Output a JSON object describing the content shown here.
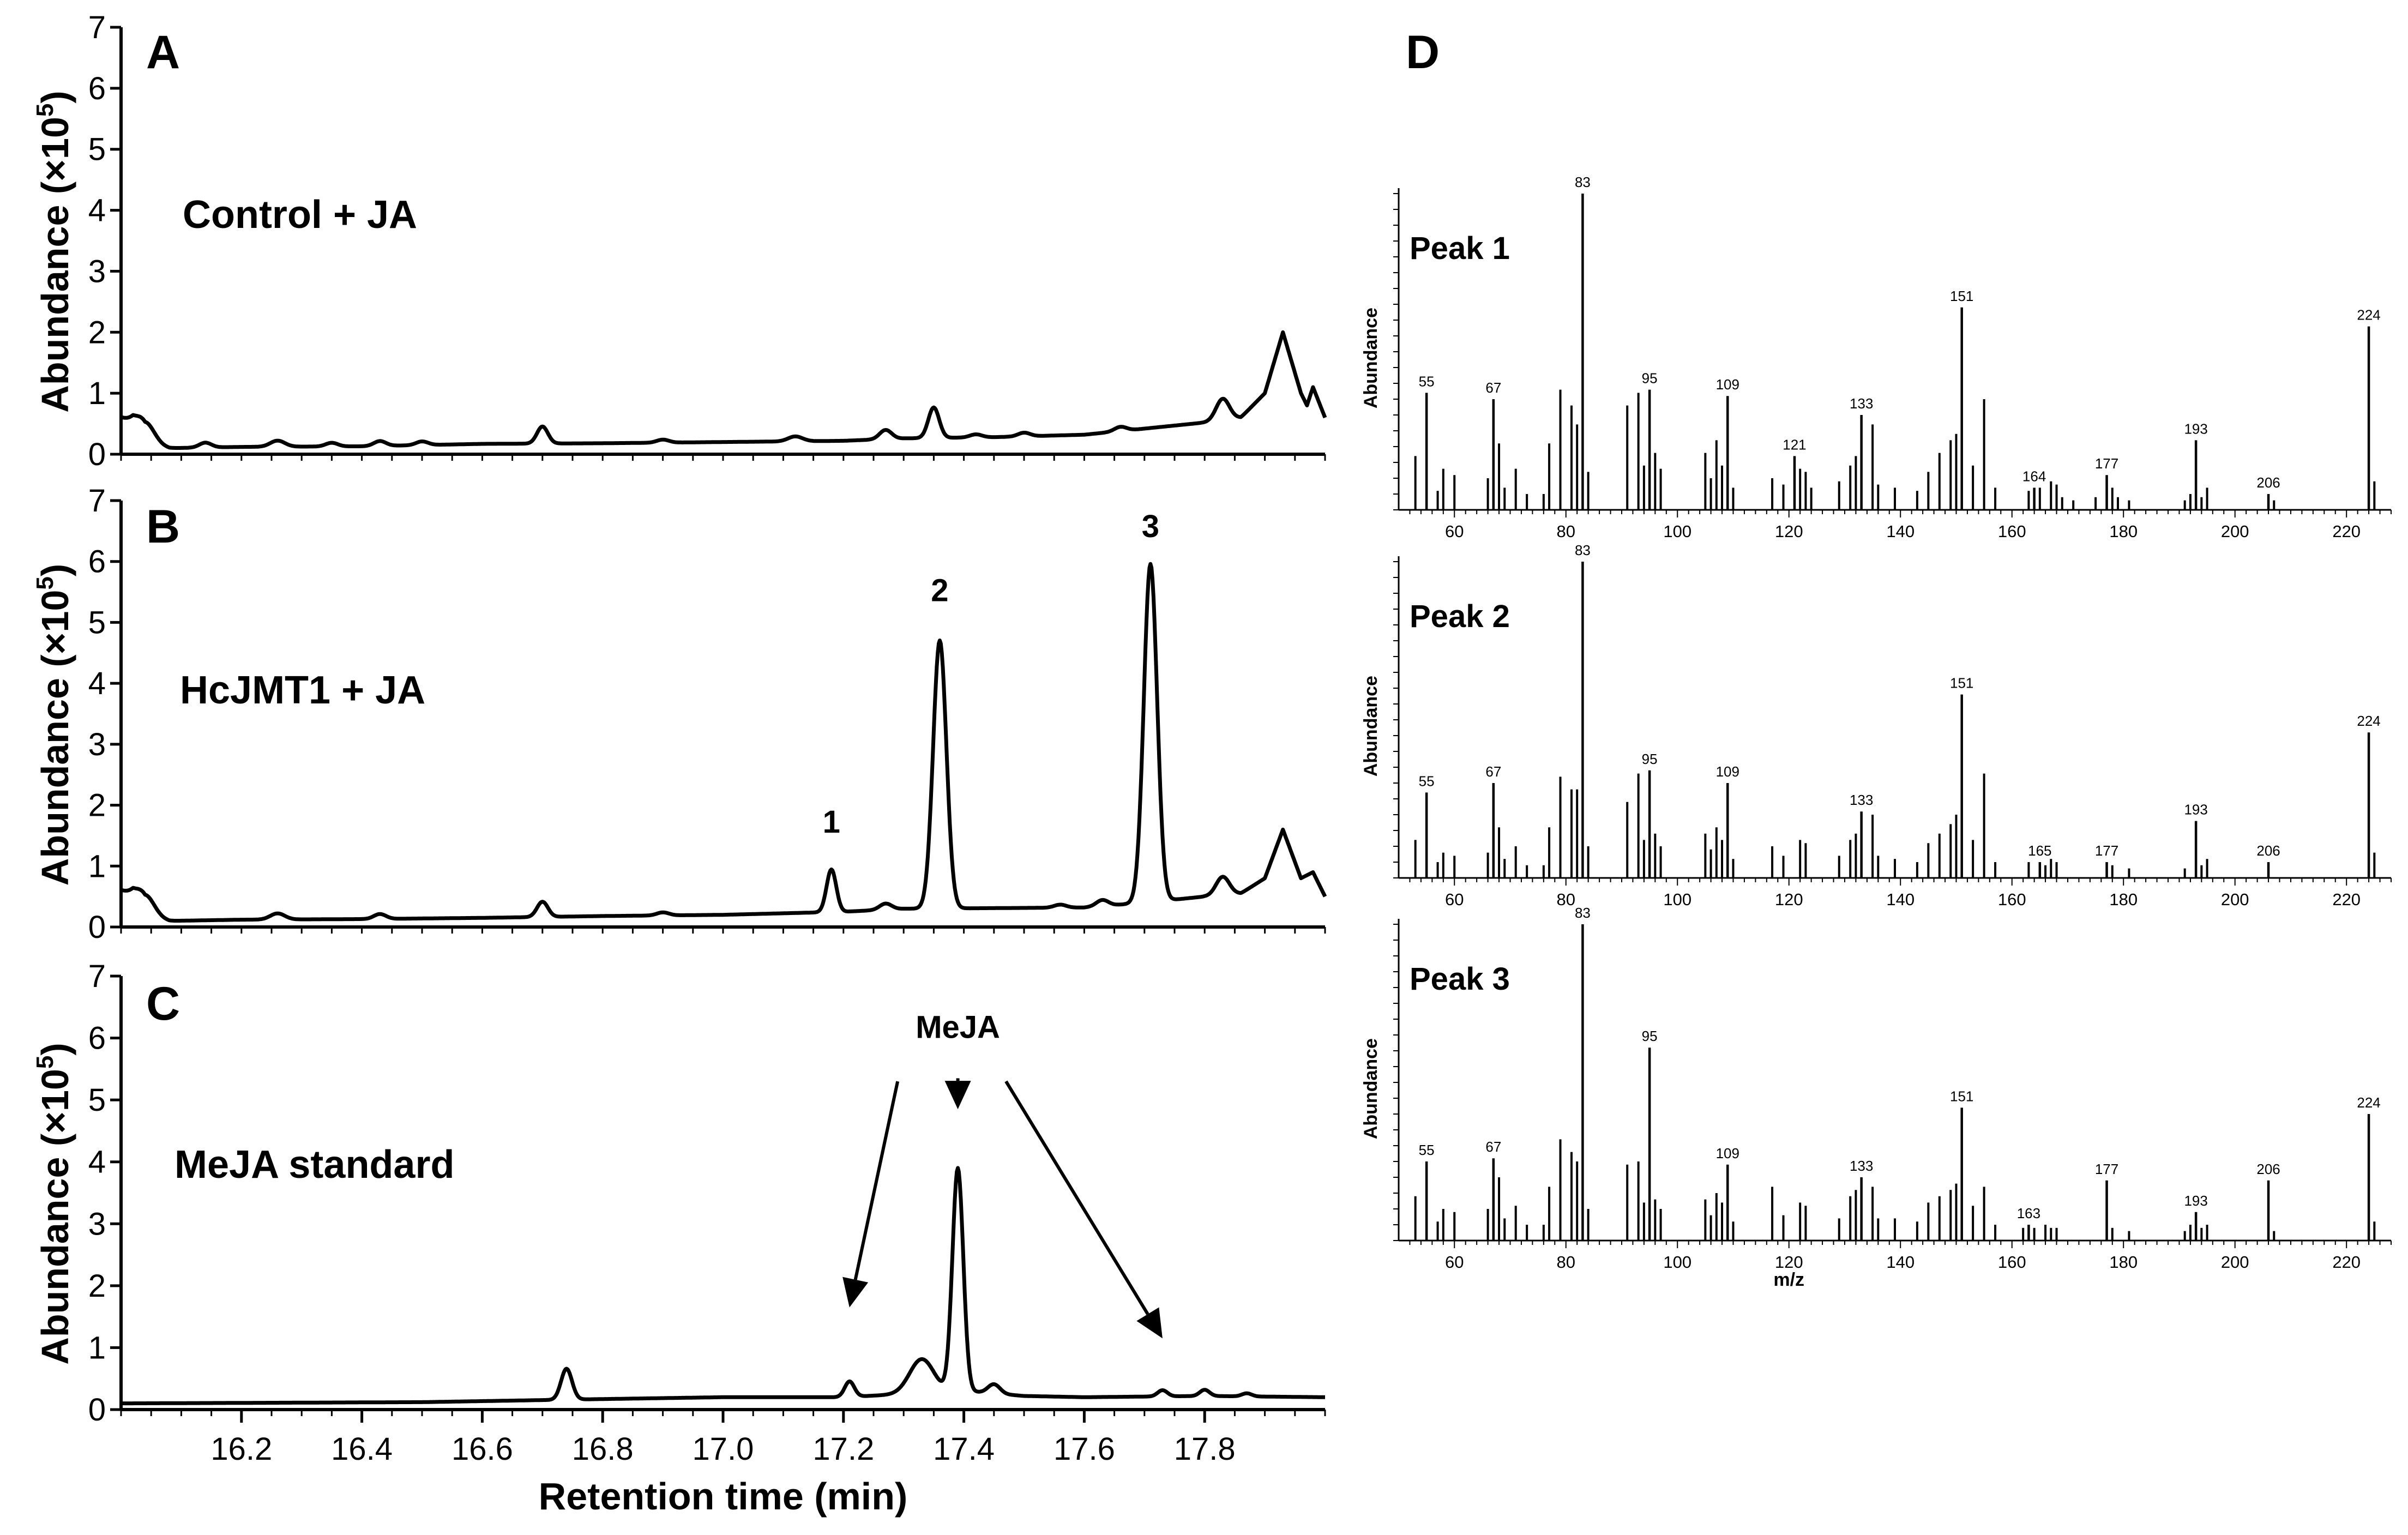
{
  "figure": {
    "panel_letters": [
      "A",
      "B",
      "C",
      "D"
    ],
    "y_label": "Abundance (×10",
    "y_label_exp": "5",
    "y_label_close": ")",
    "x_label": "Retention time (min)",
    "ms_y_label": "Abundance",
    "ms_x_label": "m/z"
  },
  "colors": {
    "line": "#000000",
    "background": "#ffffff"
  },
  "chart_data": [
    {
      "panel": "A",
      "type": "line",
      "title": "Control + JA",
      "xlim": [
        16.0,
        18.0
      ],
      "ylim": [
        0,
        7
      ],
      "yticks": [
        "0",
        "1",
        "2",
        "3",
        "4",
        "5",
        "6",
        "7"
      ],
      "baseline": [
        [
          16.0,
          0.6
        ],
        [
          16.02,
          0.5
        ],
        [
          16.04,
          0.18
        ],
        [
          16.08,
          0.1
        ],
        [
          16.2,
          0.12
        ],
        [
          16.4,
          0.13
        ],
        [
          16.6,
          0.17
        ],
        [
          16.8,
          0.18
        ],
        [
          17.0,
          0.2
        ],
        [
          17.2,
          0.22
        ],
        [
          17.3,
          0.26
        ],
        [
          17.45,
          0.28
        ],
        [
          17.6,
          0.32
        ],
        [
          17.7,
          0.42
        ],
        [
          17.8,
          0.52
        ],
        [
          17.86,
          0.6
        ],
        [
          17.9,
          1.0
        ],
        [
          17.93,
          2.0
        ],
        [
          17.96,
          1.0
        ],
        [
          17.97,
          0.8
        ],
        [
          17.98,
          1.1
        ],
        [
          18.0,
          0.6
        ]
      ],
      "peaks": [
        [
          16.04,
          0.35,
          0.015
        ],
        [
          16.14,
          0.08,
          0.01
        ],
        [
          16.26,
          0.1,
          0.012
        ],
        [
          16.35,
          0.06,
          0.01
        ],
        [
          16.43,
          0.08,
          0.01
        ],
        [
          16.5,
          0.06,
          0.01
        ],
        [
          16.7,
          0.28,
          0.009
        ],
        [
          16.9,
          0.05,
          0.01
        ],
        [
          17.12,
          0.08,
          0.012
        ],
        [
          17.27,
          0.15,
          0.01
        ],
        [
          17.35,
          0.5,
          0.009
        ],
        [
          17.42,
          0.05,
          0.01
        ],
        [
          17.5,
          0.06,
          0.01
        ],
        [
          17.66,
          0.07,
          0.01
        ],
        [
          17.83,
          0.35,
          0.011
        ]
      ],
      "peak_labels": []
    },
    {
      "panel": "B",
      "type": "line",
      "title": "HcJMT1 + JA",
      "xlim": [
        16.0,
        18.0
      ],
      "ylim": [
        0,
        7
      ],
      "yticks": [
        "0",
        "1",
        "2",
        "3",
        "4",
        "5",
        "6",
        "7"
      ],
      "baseline": [
        [
          16.0,
          0.6
        ],
        [
          16.02,
          0.5
        ],
        [
          16.04,
          0.18
        ],
        [
          16.08,
          0.1
        ],
        [
          16.2,
          0.12
        ],
        [
          16.4,
          0.13
        ],
        [
          16.6,
          0.15
        ],
        [
          16.8,
          0.18
        ],
        [
          17.0,
          0.2
        ],
        [
          17.2,
          0.25
        ],
        [
          17.3,
          0.3
        ],
        [
          17.6,
          0.32
        ],
        [
          17.7,
          0.4
        ],
        [
          17.8,
          0.5
        ],
        [
          17.86,
          0.55
        ],
        [
          17.9,
          0.8
        ],
        [
          17.93,
          1.6
        ],
        [
          17.96,
          0.8
        ],
        [
          17.98,
          0.9
        ],
        [
          18.0,
          0.5
        ]
      ],
      "peaks": [
        [
          16.04,
          0.35,
          0.015
        ],
        [
          16.26,
          0.1,
          0.012
        ],
        [
          16.43,
          0.08,
          0.01
        ],
        [
          16.7,
          0.25,
          0.009
        ],
        [
          16.9,
          0.05,
          0.01
        ],
        [
          17.18,
          0.7,
          0.008
        ],
        [
          17.27,
          0.1,
          0.01
        ],
        [
          17.36,
          4.4,
          0.011
        ],
        [
          17.56,
          0.05,
          0.01
        ],
        [
          17.63,
          0.1,
          0.01
        ],
        [
          17.71,
          5.55,
          0.011
        ],
        [
          17.83,
          0.3,
          0.011
        ]
      ],
      "peak_labels": [
        {
          "text": "1",
          "x": 17.18,
          "y": 1.55
        },
        {
          "text": "2",
          "x": 17.36,
          "y": 5.35
        },
        {
          "text": "3",
          "x": 17.71,
          "y": 6.4
        }
      ]
    },
    {
      "panel": "C",
      "type": "line",
      "title": "MeJA standard",
      "xlim": [
        16.0,
        18.0
      ],
      "ylim": [
        0,
        7
      ],
      "yticks": [
        "0",
        "1",
        "2",
        "3",
        "4",
        "5",
        "6",
        "7"
      ],
      "xticks": [
        16.2,
        16.4,
        16.6,
        16.8,
        17.0,
        17.2,
        17.4,
        17.6,
        17.8
      ],
      "xtick_labels": [
        "16.2",
        "16.4",
        "16.6",
        "16.8",
        "17.0",
        "17.2",
        "17.4",
        "17.6",
        "17.8"
      ],
      "baseline": [
        [
          16.0,
          0.1
        ],
        [
          16.5,
          0.12
        ],
        [
          16.8,
          0.17
        ],
        [
          17.0,
          0.2
        ],
        [
          17.2,
          0.2
        ],
        [
          17.4,
          0.3
        ],
        [
          17.5,
          0.22
        ],
        [
          17.6,
          0.2
        ],
        [
          17.8,
          0.22
        ],
        [
          18.0,
          0.2
        ]
      ],
      "peaks": [
        [
          16.74,
          0.5,
          0.009
        ],
        [
          17.21,
          0.25,
          0.008
        ],
        [
          17.33,
          0.55,
          0.02
        ],
        [
          17.39,
          3.6,
          0.009
        ],
        [
          17.45,
          0.15,
          0.01
        ],
        [
          17.73,
          0.1,
          0.008
        ],
        [
          17.8,
          0.1,
          0.008
        ],
        [
          17.87,
          0.05,
          0.008
        ]
      ],
      "peak_labels": [
        {
          "text": "MeJA",
          "x": 17.39,
          "y": 6.0
        }
      ],
      "arrows": [
        {
          "from": [
            17.29,
            5.3
          ],
          "to": [
            17.21,
            1.65
          ]
        },
        {
          "from": [
            17.39,
            5.35
          ],
          "to": [
            17.39,
            4.85
          ]
        },
        {
          "from": [
            17.47,
            5.3
          ],
          "to": [
            17.73,
            1.15
          ]
        }
      ]
    },
    {
      "panel": "D",
      "type": "bar",
      "subtitle": "Peak 1",
      "xlim": [
        50,
        228
      ],
      "ylim": [
        0,
        100
      ],
      "xticks": [
        60,
        80,
        100,
        120,
        140,
        160,
        180,
        200,
        220
      ],
      "labeled_peaks": [
        [
          55,
          37
        ],
        [
          67,
          35
        ],
        [
          83,
          100
        ],
        [
          95,
          38
        ],
        [
          109,
          36
        ],
        [
          121,
          17
        ],
        [
          133,
          30
        ],
        [
          151,
          64
        ],
        [
          164,
          7
        ],
        [
          177,
          11
        ],
        [
          193,
          22
        ],
        [
          206,
          5
        ],
        [
          224,
          58
        ]
      ],
      "minor_peaks": [
        [
          53,
          17
        ],
        [
          57,
          6
        ],
        [
          58,
          13
        ],
        [
          60,
          11
        ],
        [
          66,
          10
        ],
        [
          68,
          21
        ],
        [
          69,
          7
        ],
        [
          71,
          13
        ],
        [
          73,
          5
        ],
        [
          76,
          5
        ],
        [
          77,
          21
        ],
        [
          79,
          38
        ],
        [
          81,
          33
        ],
        [
          82,
          27
        ],
        [
          84,
          12
        ],
        [
          91,
          33
        ],
        [
          93,
          37
        ],
        [
          94,
          14
        ],
        [
          96,
          18
        ],
        [
          97,
          13
        ],
        [
          105,
          18
        ],
        [
          106,
          10
        ],
        [
          107,
          22
        ],
        [
          108,
          14
        ],
        [
          110,
          7
        ],
        [
          117,
          10
        ],
        [
          119,
          8
        ],
        [
          122,
          13
        ],
        [
          123,
          12
        ],
        [
          124,
          7
        ],
        [
          129,
          9
        ],
        [
          131,
          14
        ],
        [
          132,
          17
        ],
        [
          135,
          27
        ],
        [
          136,
          8
        ],
        [
          139,
          7
        ],
        [
          143,
          6
        ],
        [
          145,
          12
        ],
        [
          147,
          18
        ],
        [
          149,
          22
        ],
        [
          150,
          24
        ],
        [
          153,
          14
        ],
        [
          155,
          35
        ],
        [
          157,
          7
        ],
        [
          163,
          6
        ],
        [
          165,
          7
        ],
        [
          167,
          9
        ],
        [
          168,
          8
        ],
        [
          169,
          4
        ],
        [
          171,
          3
        ],
        [
          175,
          4
        ],
        [
          178,
          7
        ],
        [
          179,
          4
        ],
        [
          181,
          3
        ],
        [
          191,
          3
        ],
        [
          192,
          5
        ],
        [
          194,
          4
        ],
        [
          195,
          7
        ],
        [
          207,
          3
        ],
        [
          225,
          9
        ]
      ]
    },
    {
      "panel": "D",
      "type": "bar",
      "subtitle": "Peak 2",
      "xlim": [
        50,
        228
      ],
      "ylim": [
        0,
        100
      ],
      "xticks": [
        60,
        80,
        100,
        120,
        140,
        160,
        180,
        200,
        220
      ],
      "labeled_peaks": [
        [
          55,
          27
        ],
        [
          67,
          30
        ],
        [
          83,
          100
        ],
        [
          95,
          34
        ],
        [
          109,
          30
        ],
        [
          133,
          21
        ],
        [
          151,
          58
        ],
        [
          165,
          5
        ],
        [
          177,
          5
        ],
        [
          193,
          18
        ],
        [
          206,
          5
        ],
        [
          224,
          46
        ]
      ],
      "minor_peaks": [
        [
          53,
          12
        ],
        [
          57,
          5
        ],
        [
          58,
          8
        ],
        [
          60,
          7
        ],
        [
          66,
          8
        ],
        [
          68,
          16
        ],
        [
          69,
          6
        ],
        [
          71,
          10
        ],
        [
          73,
          4
        ],
        [
          76,
          4
        ],
        [
          77,
          16
        ],
        [
          79,
          32
        ],
        [
          81,
          28
        ],
        [
          82,
          28
        ],
        [
          84,
          10
        ],
        [
          91,
          24
        ],
        [
          93,
          33
        ],
        [
          94,
          12
        ],
        [
          96,
          14
        ],
        [
          97,
          10
        ],
        [
          105,
          14
        ],
        [
          106,
          9
        ],
        [
          107,
          16
        ],
        [
          108,
          12
        ],
        [
          110,
          6
        ],
        [
          117,
          10
        ],
        [
          119,
          7
        ],
        [
          122,
          12
        ],
        [
          123,
          11
        ],
        [
          129,
          7
        ],
        [
          131,
          12
        ],
        [
          132,
          14
        ],
        [
          135,
          20
        ],
        [
          136,
          7
        ],
        [
          139,
          6
        ],
        [
          143,
          5
        ],
        [
          145,
          11
        ],
        [
          147,
          14
        ],
        [
          149,
          17
        ],
        [
          150,
          20
        ],
        [
          153,
          12
        ],
        [
          155,
          33
        ],
        [
          157,
          5
        ],
        [
          163,
          5
        ],
        [
          166,
          4
        ],
        [
          167,
          6
        ],
        [
          168,
          5
        ],
        [
          178,
          4
        ],
        [
          181,
          3
        ],
        [
          191,
          3
        ],
        [
          194,
          4
        ],
        [
          195,
          6
        ],
        [
          225,
          8
        ]
      ]
    },
    {
      "panel": "D",
      "type": "bar",
      "subtitle": "Peak 3",
      "xlim": [
        50,
        228
      ],
      "ylim": [
        0,
        100
      ],
      "xticks": [
        60,
        80,
        100,
        120,
        140,
        160,
        180,
        200,
        220
      ],
      "labeled_peaks": [
        [
          55,
          25
        ],
        [
          67,
          26
        ],
        [
          83,
          100
        ],
        [
          95,
          61
        ],
        [
          109,
          24
        ],
        [
          133,
          20
        ],
        [
          151,
          42
        ],
        [
          163,
          5
        ],
        [
          177,
          19
        ],
        [
          193,
          9
        ],
        [
          206,
          19
        ],
        [
          224,
          40
        ]
      ],
      "minor_peaks": [
        [
          53,
          14
        ],
        [
          57,
          6
        ],
        [
          58,
          10
        ],
        [
          60,
          9
        ],
        [
          66,
          10
        ],
        [
          68,
          20
        ],
        [
          69,
          7
        ],
        [
          71,
          11
        ],
        [
          73,
          5
        ],
        [
          76,
          5
        ],
        [
          77,
          17
        ],
        [
          79,
          32
        ],
        [
          81,
          28
        ],
        [
          82,
          25
        ],
        [
          84,
          10
        ],
        [
          91,
          24
        ],
        [
          93,
          25
        ],
        [
          94,
          12
        ],
        [
          96,
          13
        ],
        [
          97,
          10
        ],
        [
          105,
          13
        ],
        [
          106,
          8
        ],
        [
          107,
          15
        ],
        [
          108,
          12
        ],
        [
          110,
          6
        ],
        [
          117,
          17
        ],
        [
          119,
          8
        ],
        [
          122,
          12
        ],
        [
          123,
          11
        ],
        [
          129,
          7
        ],
        [
          131,
          14
        ],
        [
          132,
          16
        ],
        [
          135,
          17
        ],
        [
          136,
          7
        ],
        [
          139,
          7
        ],
        [
          143,
          6
        ],
        [
          145,
          12
        ],
        [
          147,
          14
        ],
        [
          149,
          16
        ],
        [
          150,
          18
        ],
        [
          153,
          11
        ],
        [
          155,
          17
        ],
        [
          157,
          5
        ],
        [
          162,
          4
        ],
        [
          164,
          4
        ],
        [
          166,
          5
        ],
        [
          167,
          4
        ],
        [
          168,
          4
        ],
        [
          178,
          4
        ],
        [
          181,
          3
        ],
        [
          191,
          3
        ],
        [
          192,
          5
        ],
        [
          194,
          4
        ],
        [
          195,
          5
        ],
        [
          207,
          3
        ],
        [
          225,
          6
        ]
      ]
    }
  ]
}
